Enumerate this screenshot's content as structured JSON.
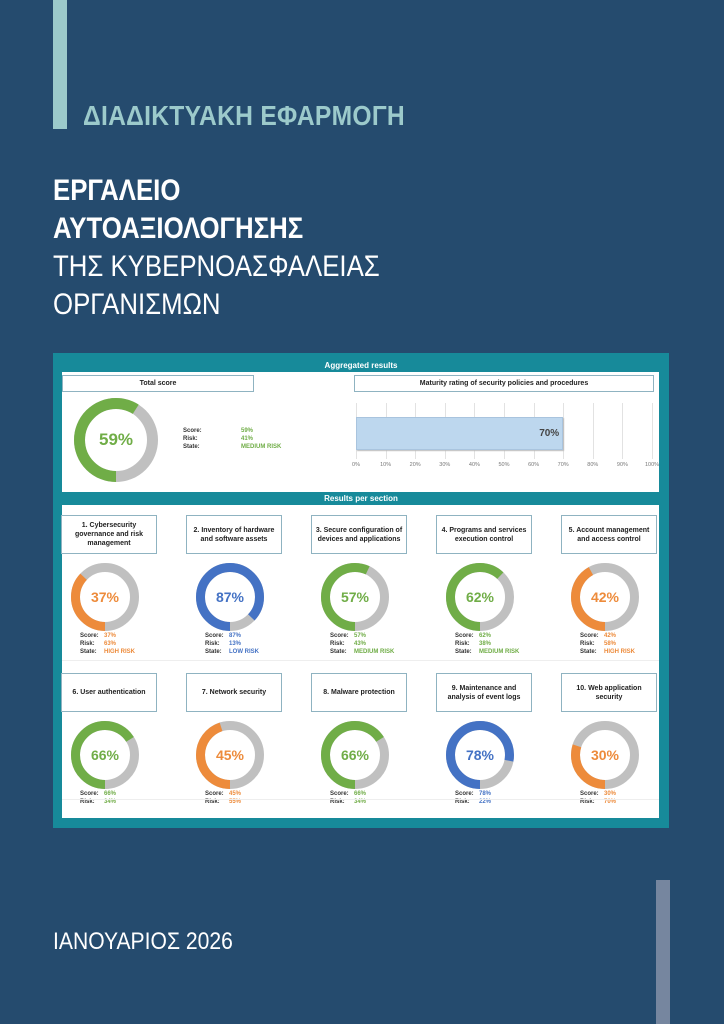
{
  "cover": {
    "subtitle": "ΔΙΑΔΙΚΤΥΑΚΗ ΕΦΑΡΜΟΓΗ",
    "title_line1": "ΕΡΓΑΛΕΙΟ",
    "title_line2": "ΑΥΤΟΑΞΙΟΛΟΓΗΣΗΣ",
    "title_line3": "ΤΗΣ ΚΥΒΕΡΝΟΑΣΦΑΛΕΙΑΣ",
    "title_line4": "ΟΡΓΑΝΙΣΜΩΝ",
    "date": "ΙΑΝΟΥΑΡΙΟΣ 2026"
  },
  "colors": {
    "background": "#254b6e",
    "accent_light": "#9ccacb",
    "accent_gray": "#76869f",
    "frame_teal": "#178a9a",
    "green": "#70ad47",
    "orange": "#ed8b3b",
    "blue": "#4472c4",
    "gray": "#c0c0c0"
  },
  "dashboard": {
    "aggregated_label": "Aggregated results",
    "per_section_label": "Results per section",
    "total": {
      "title": "Total score",
      "pct": "59%",
      "value": 59,
      "color": "green",
      "score_label": "Score:",
      "score": "59%",
      "risk_label": "Risk:",
      "risk": "41%",
      "state_label": "State:",
      "state": "MEDIUM RISK"
    },
    "maturity": {
      "title": "Maturity rating of security policies and procedures",
      "value": 70,
      "label": "70%",
      "ticks": [
        "0%",
        "10%",
        "20%",
        "30%",
        "40%",
        "50%",
        "60%",
        "70%",
        "80%",
        "90%",
        "100%"
      ]
    },
    "sections": [
      {
        "title": "1. Cybersecurity governance and risk management",
        "pct": "37%",
        "value": 37,
        "color": "orange",
        "score": "37%",
        "risk": "63%",
        "state": "HIGH RISK"
      },
      {
        "title": "2. Inventory of hardware and software assets",
        "pct": "87%",
        "value": 87,
        "color": "blue",
        "score": "87%",
        "risk": "13%",
        "state": "LOW RISK"
      },
      {
        "title": "3. Secure configuration of devices and applications",
        "pct": "57%",
        "value": 57,
        "color": "green",
        "score": "57%",
        "risk": "43%",
        "state": "MEDIUM RISK"
      },
      {
        "title": "4. Programs and services execution control",
        "pct": "62%",
        "value": 62,
        "color": "green",
        "score": "62%",
        "risk": "38%",
        "state": "MEDIUM RISK"
      },
      {
        "title": "5. Account management and access control",
        "pct": "42%",
        "value": 42,
        "color": "orange",
        "score": "42%",
        "risk": "58%",
        "state": "HIGH RISK"
      },
      {
        "title": "6. User authentication",
        "pct": "66%",
        "value": 66,
        "color": "green",
        "score": "66%",
        "risk": "34%"
      },
      {
        "title": "7. Network security",
        "pct": "45%",
        "value": 45,
        "color": "orange",
        "score": "45%",
        "risk": "55%"
      },
      {
        "title": "8. Malware protection",
        "pct": "66%",
        "value": 66,
        "color": "green",
        "score": "66%",
        "risk": "34%"
      },
      {
        "title": "9. Maintenance and analysis of event logs",
        "pct": "78%",
        "value": 78,
        "color": "blue",
        "score": "78%",
        "risk": "22%"
      },
      {
        "title": "10. Web application security",
        "pct": "30%",
        "value": 30,
        "color": "orange",
        "score": "30%",
        "risk": "70%"
      }
    ],
    "labels": {
      "score": "Score:",
      "risk": "Risk:",
      "state": "State:"
    }
  },
  "chart_data": [
    {
      "type": "pie",
      "title": "Total score",
      "categories": [
        "Score",
        "Risk"
      ],
      "values": [
        59,
        41
      ],
      "annotations": [
        "State: MEDIUM RISK"
      ]
    },
    {
      "type": "bar",
      "title": "Maturity rating of security policies and procedures",
      "orientation": "horizontal",
      "categories": [
        "Maturity"
      ],
      "values": [
        70
      ],
      "xlim": [
        0,
        100
      ],
      "xticks": [
        "0%",
        "10%",
        "20%",
        "30%",
        "40%",
        "50%",
        "60%",
        "70%",
        "80%",
        "90%",
        "100%"
      ],
      "grid": true
    },
    {
      "type": "pie",
      "title": "Results per section",
      "categories": [
        "1. Cybersecurity governance and risk management",
        "2. Inventory of hardware and software assets",
        "3. Secure configuration of devices and applications",
        "4. Programs and services execution control",
        "5. Account management and access control",
        "6. User authentication",
        "7. Network security",
        "8. Malware protection",
        "9. Maintenance and analysis of event logs",
        "10. Web application security"
      ],
      "series": [
        {
          "name": "Score",
          "values": [
            37,
            87,
            57,
            62,
            42,
            66,
            45,
            66,
            78,
            30
          ]
        },
        {
          "name": "Risk",
          "values": [
            63,
            13,
            43,
            38,
            58,
            34,
            55,
            34,
            22,
            70
          ]
        }
      ],
      "states": [
        "HIGH RISK",
        "LOW RISK",
        "MEDIUM RISK",
        "MEDIUM RISK",
        "HIGH RISK",
        null,
        null,
        null,
        null,
        null
      ]
    }
  ]
}
